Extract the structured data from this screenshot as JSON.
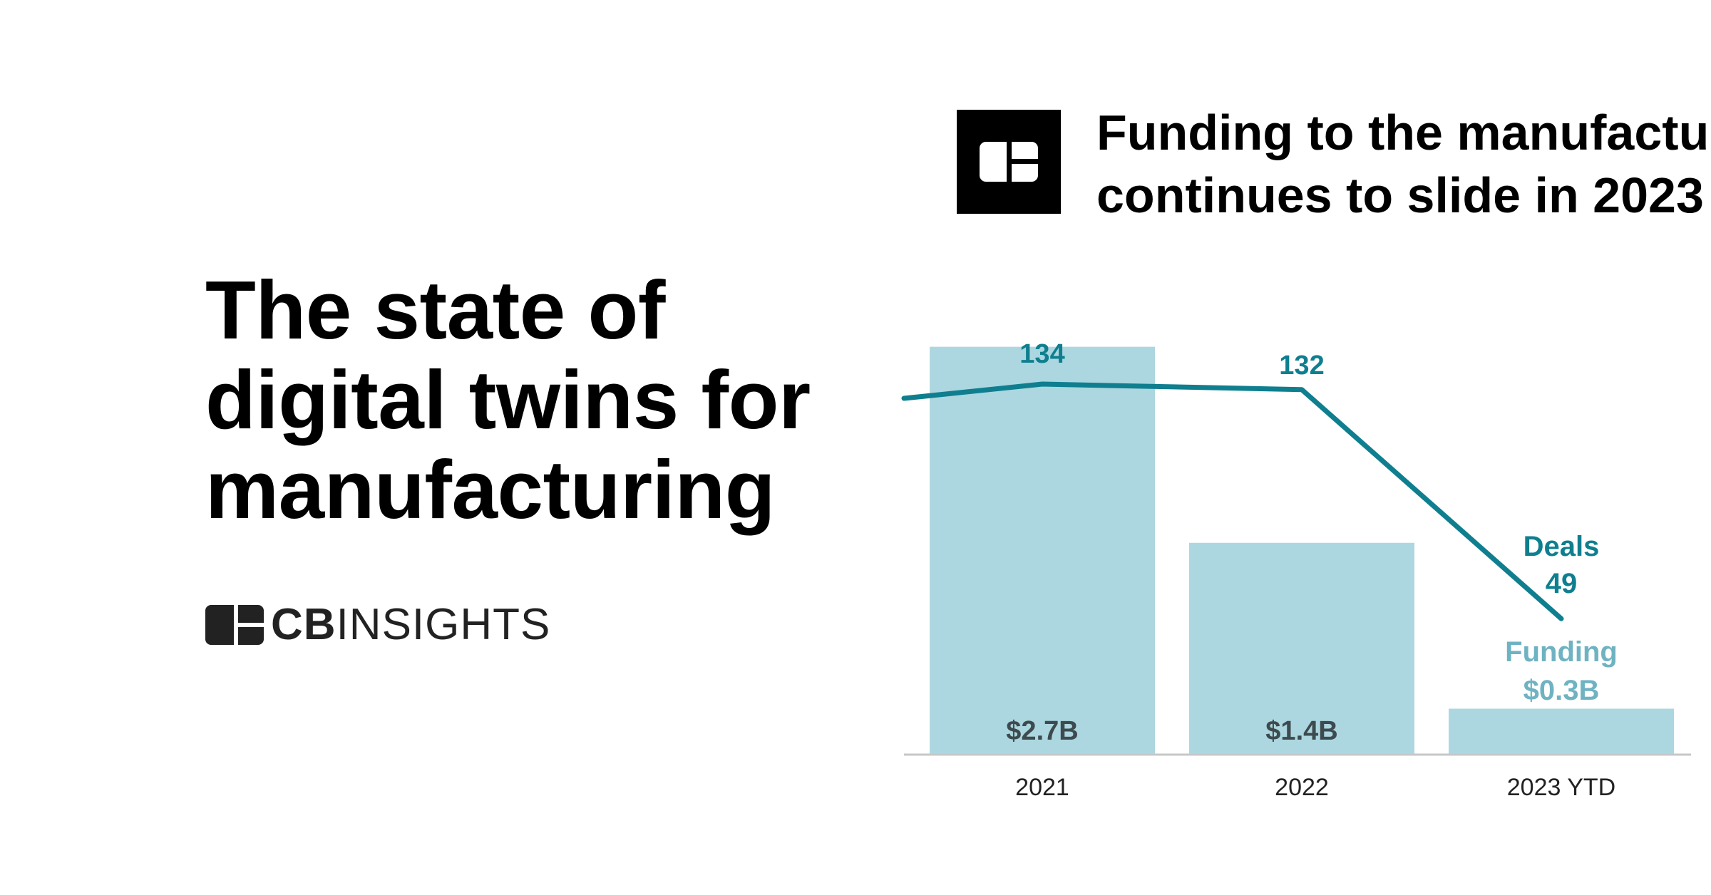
{
  "headline": {
    "lines": [
      "The state of",
      "digital twins for",
      "manufacturing"
    ]
  },
  "brand": {
    "text_bold": "CB",
    "text_light": "INSIGHTS",
    "icon": "cb-insights-logo-icon"
  },
  "colors": {
    "bar": "#acd7e0",
    "line": "#0f7f8f",
    "funding_label": "#6fb3c2",
    "bar_value_label": "#3d4a4e",
    "axis": "#c7c7c7"
  },
  "chart_data": {
    "type": "bar",
    "title_lines": [
      "Funding to the manufacturi",
      "continues to slide in 2023"
    ],
    "categories": [
      "2021",
      "2022",
      "2023 YTD"
    ],
    "series": [
      {
        "name": "Funding",
        "type": "bar",
        "values": [
          2.7,
          1.4,
          0.3
        ],
        "labels": [
          "$2.7B",
          "$1.4B",
          "$0.3B"
        ]
      },
      {
        "name": "Deals",
        "type": "line",
        "values": [
          134,
          132,
          49
        ],
        "labels": [
          "134",
          "132",
          "49"
        ]
      }
    ],
    "funding_ylim": [
      0,
      3.2
    ],
    "deals_ylim": [
      0,
      155
    ],
    "legend": {
      "deals_name": "Deals",
      "deals_value": "49",
      "funding_name": "Funding",
      "funding_value": "$0.3B"
    },
    "grid": false
  }
}
